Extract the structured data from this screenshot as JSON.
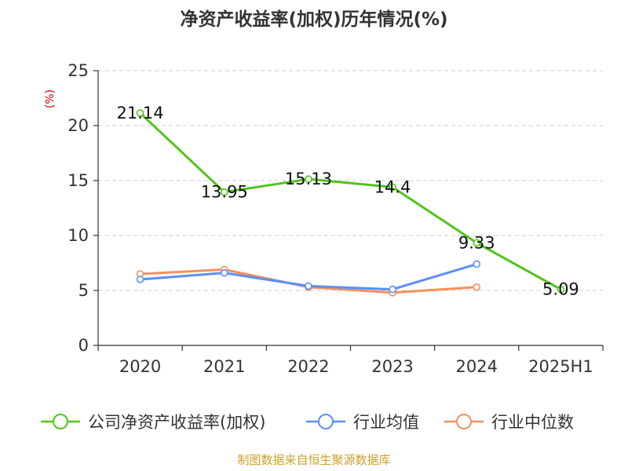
{
  "chart_data": {
    "type": "line",
    "title": "净资产收益率(加权)历年情况(%)",
    "ylabel": "(%)",
    "xlabel": "",
    "ylim": [
      0,
      25
    ],
    "yticks": [
      0,
      5,
      10,
      15,
      20,
      25
    ],
    "categories": [
      "2020",
      "2021",
      "2022",
      "2023",
      "2024",
      "2025H1"
    ],
    "grid": true,
    "legend_position": "bottom",
    "series": [
      {
        "name": "公司净资产收益率(加权)",
        "color": "#52c41a",
        "values": [
          21.14,
          13.95,
          15.13,
          14.4,
          9.33,
          5.09
        ],
        "show_labels": true
      },
      {
        "name": "行业均值",
        "color": "#5b8ff9",
        "values": [
          6.0,
          6.6,
          5.4,
          5.1,
          7.4,
          null
        ],
        "show_labels": false
      },
      {
        "name": "行业中位数",
        "color": "#f6905a",
        "values": [
          6.5,
          6.9,
          5.3,
          4.8,
          5.3,
          null
        ],
        "show_labels": false
      }
    ]
  },
  "source_text": "制图数据来自恒生聚源数据库"
}
